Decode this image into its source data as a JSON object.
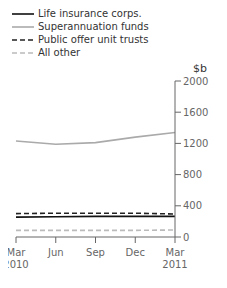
{
  "chart_data": {
    "type": "line",
    "ylabel": "$b",
    "categories": [
      "Mar\n2010",
      "Jun",
      "Sep",
      "Dec",
      "Mar\n2011"
    ],
    "series": [
      {
        "name": "Life insurance corps.",
        "color": "#111111",
        "line_style": "solid",
        "values": [
          255,
          260,
          265,
          265,
          265
        ]
      },
      {
        "name": "Superannuation funds",
        "color": "#aaaaaa",
        "line_style": "solid",
        "values": [
          1230,
          1190,
          1210,
          1280,
          1340
        ]
      },
      {
        "name": "Public offer unit trusts",
        "color": "#222222",
        "line_style": "dashed",
        "values": [
          300,
          305,
          305,
          305,
          295
        ]
      },
      {
        "name": "All other",
        "color": "#bbbbbb",
        "line_style": "dashed",
        "values": [
          85,
          85,
          85,
          85,
          90
        ]
      }
    ],
    "ylim": [
      0,
      2000
    ],
    "yticks": [
      0,
      400,
      800,
      1200,
      1600,
      2000
    ],
    "grid": false,
    "legend": "top"
  }
}
